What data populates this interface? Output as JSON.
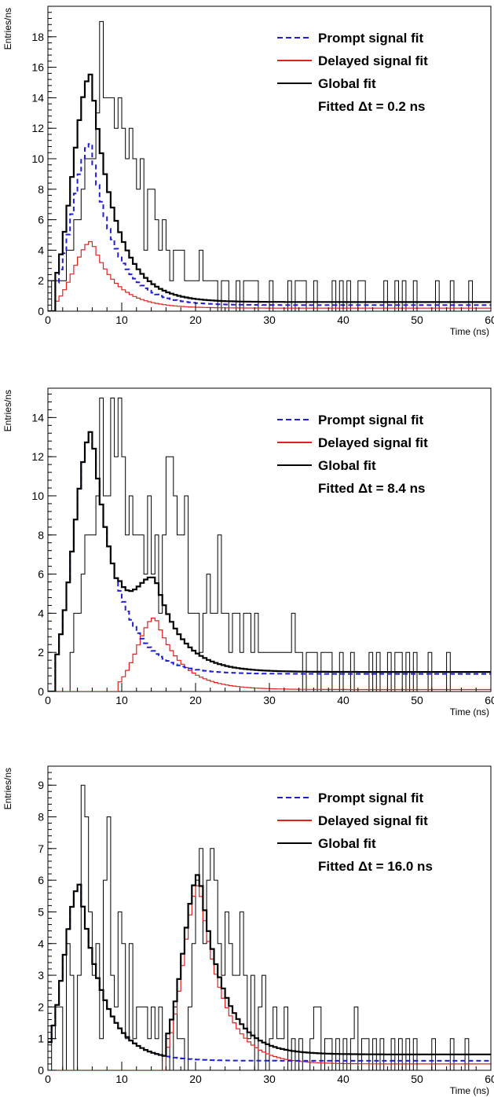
{
  "chart_data": [
    {
      "type": "line",
      "panel": "top",
      "xlabel": "Time (ns)",
      "ylabel": "Entries/ns",
      "xlim": [
        0,
        60
      ],
      "ylim": [
        0,
        20
      ],
      "x_ticks": [
        0,
        10,
        20,
        30,
        40,
        50,
        60
      ],
      "y_ticks": [
        0,
        2,
        4,
        6,
        8,
        10,
        12,
        14,
        16,
        18
      ],
      "grid": false,
      "legend_position": "top-right",
      "legend": [
        {
          "label": "Prompt signal fit",
          "color": "#1f1fd6",
          "style": "dashed"
        },
        {
          "label": "Delayed signal fit",
          "color": "#e0201c",
          "style": "solid"
        },
        {
          "label": "Global fit",
          "color": "#000000",
          "style": "solid"
        }
      ],
      "annotation": "Fitted Δt = 0.2 ns",
      "fit": {
        "onset": 0.8,
        "delay": 0.2,
        "sigma": 2.4,
        "tau": 3.3,
        "prompt_amp": 10.6,
        "delayed_amp": 4.4,
        "tail_prompt": 0.4,
        "tail_delayed": 0.2
      },
      "data_histogram": {
        "x_start": 0,
        "bin_width": 0.5,
        "counts": [
          0,
          2,
          2,
          2,
          2,
          4,
          4,
          6,
          6,
          8,
          10,
          10,
          10,
          13,
          19,
          14,
          14,
          14,
          12,
          14,
          12,
          10,
          12,
          10,
          8,
          10,
          4,
          8,
          8,
          6,
          4,
          6,
          4,
          2,
          4,
          4,
          4,
          2,
          2,
          2,
          2,
          4,
          2,
          2,
          2,
          2,
          0,
          2,
          2,
          0,
          0,
          2,
          0,
          2,
          2,
          2,
          2,
          0,
          0,
          0,
          2,
          0,
          0,
          0,
          0,
          2,
          0,
          2,
          2,
          2,
          0,
          0,
          2,
          0,
          0,
          0,
          0,
          2,
          0,
          2,
          0,
          2,
          0,
          0,
          2,
          2,
          0,
          0,
          0,
          0,
          0,
          2,
          0,
          0,
          2,
          0,
          2,
          0,
          0,
          2,
          0,
          0,
          0,
          0,
          0,
          2,
          0,
          0,
          0,
          2,
          0,
          0,
          0,
          0,
          2,
          0,
          0,
          0,
          0,
          0
        ]
      }
    },
    {
      "type": "line",
      "panel": "middle",
      "xlabel": "Time (ns)",
      "ylabel": "Entries/ns",
      "xlim": [
        0,
        60
      ],
      "ylim": [
        0,
        15.5
      ],
      "x_ticks": [
        0,
        10,
        20,
        30,
        40,
        50,
        60
      ],
      "y_ticks": [
        0,
        2,
        4,
        6,
        8,
        10,
        12,
        14
      ],
      "grid": false,
      "legend_position": "top-right",
      "legend": [
        {
          "label": "Prompt signal fit",
          "color": "#1f1fd6",
          "style": "dashed"
        },
        {
          "label": "Delayed signal fit",
          "color": "#e0201c",
          "style": "solid"
        },
        {
          "label": "Global fit",
          "color": "#000000",
          "style": "solid"
        }
      ],
      "annotation": "Fitted Δt = 8.4 ns",
      "fit": {
        "onset": 1.0,
        "delay": 8.4,
        "sigma": 2.4,
        "tau": 3.5,
        "prompt_amp": 12.5,
        "delayed_amp": 3.7,
        "tail_prompt": 0.9,
        "tail_delayed": 0.1
      },
      "data_histogram": {
        "x_start": 0,
        "bin_width": 0.5,
        "counts": [
          0,
          0,
          0,
          0,
          0,
          0,
          2,
          4,
          4,
          6,
          8,
          8,
          8,
          10,
          15,
          10,
          10,
          15,
          12,
          15,
          12,
          8,
          10,
          8,
          8,
          8,
          6,
          10,
          6,
          8,
          4,
          8,
          12,
          12,
          10,
          8,
          8,
          10,
          4,
          4,
          4,
          2,
          4,
          6,
          4,
          4,
          8,
          4,
          4,
          2,
          4,
          4,
          2,
          4,
          4,
          2,
          4,
          2,
          2,
          2,
          2,
          2,
          2,
          2,
          2,
          2,
          4,
          2,
          2,
          0,
          2,
          2,
          2,
          0,
          2,
          2,
          2,
          0,
          0,
          2,
          0,
          0,
          2,
          0,
          0,
          0,
          0,
          2,
          0,
          2,
          0,
          0,
          2,
          0,
          2,
          2,
          0,
          2,
          0,
          2,
          0,
          0,
          0,
          2,
          0,
          0,
          0,
          0,
          2,
          0,
          0,
          0,
          0,
          0,
          0,
          0,
          0,
          0,
          0,
          0
        ]
      }
    },
    {
      "type": "line",
      "panel": "bottom",
      "xlabel": "Time (ns)",
      "ylabel": "Entries/ns",
      "xlim": [
        0,
        60
      ],
      "ylim": [
        0,
        9.6
      ],
      "x_ticks": [
        0,
        10,
        20,
        30,
        40,
        50,
        60
      ],
      "y_ticks": [
        0,
        1,
        2,
        3,
        4,
        5,
        6,
        7,
        8,
        9
      ],
      "grid": false,
      "legend_position": "top-right",
      "legend": [
        {
          "label": "Prompt signal fit",
          "color": "#1f1fd6",
          "style": "dashed"
        },
        {
          "label": "Delayed signal fit",
          "color": "#e0201c",
          "style": "solid"
        },
        {
          "label": "Global fit",
          "color": "#000000",
          "style": "solid"
        }
      ],
      "annotation": "Fitted Δt = 16.0 ns",
      "fit": {
        "onset": 0.0,
        "delay": 16.0,
        "sigma": 2.1,
        "tau": 3.2,
        "prompt_amp": 5.6,
        "delayed_amp": 5.7,
        "tail_prompt": 0.3,
        "tail_delayed": 0.2
      },
      "data_histogram": {
        "x_start": 0,
        "bin_width": 0.5,
        "counts": [
          0,
          1,
          2,
          2,
          0,
          4,
          3,
          0,
          3,
          9,
          8,
          5,
          3,
          4,
          1,
          6,
          8,
          3,
          2,
          5,
          4,
          1,
          4,
          1,
          2,
          2,
          2,
          1,
          2,
          1,
          2,
          0,
          1,
          0,
          2,
          1,
          1,
          0,
          2,
          4,
          6,
          7,
          4,
          6,
          7,
          6,
          4,
          3,
          5,
          4,
          3,
          3,
          5,
          3,
          1,
          3,
          0,
          2,
          3,
          0,
          1,
          2,
          1,
          1,
          2,
          0,
          1,
          0,
          1,
          0,
          0,
          1,
          2,
          2,
          0,
          1,
          1,
          0,
          1,
          0,
          1,
          0,
          1,
          2,
          0,
          1,
          1,
          0,
          1,
          0,
          1,
          0,
          0,
          1,
          0,
          1,
          0,
          1,
          0,
          1,
          0,
          0,
          0,
          0,
          1,
          0,
          0,
          0,
          0,
          1,
          0,
          0,
          0,
          1,
          0,
          0,
          0,
          0,
          0,
          0
        ]
      }
    }
  ]
}
